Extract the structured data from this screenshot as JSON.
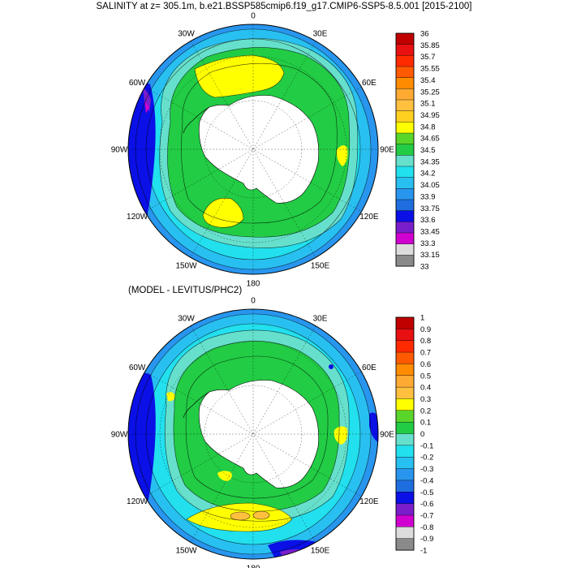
{
  "titles": {
    "top": "SALINITY at z= 305.1m, b.e21.BSSP585cmip6.f19_g17.CMIP6-SSP5-8.5.001 [2015-2100]",
    "bottom": "(MODEL - LEVITUS/PHC2)"
  },
  "longitude_labels": [
    "0",
    "30E",
    "60E",
    "90E",
    "120E",
    "150E",
    "180",
    "150W",
    "120W",
    "90W",
    "60W",
    "30W"
  ],
  "top_colorbar": {
    "labels": [
      "36",
      "35.85",
      "35.7",
      "35.55",
      "35.4",
      "35.25",
      "35.1",
      "34.95",
      "34.8",
      "34.65",
      "34.5",
      "34.35",
      "34.2",
      "34.05",
      "33.9",
      "33.75",
      "33.6",
      "33.45",
      "33.3",
      "33.15",
      "33"
    ],
    "colors": [
      "#c00000",
      "#e81010",
      "#ff2a00",
      "#ff5a00",
      "#ff8c00",
      "#ffaa33",
      "#ffc040",
      "#ffd020",
      "#ffff00",
      "#5ad52a",
      "#22cc44",
      "#66e0cc",
      "#22e0ee",
      "#28c0f0",
      "#2896ee",
      "#1e6ee0",
      "#0a10e6",
      "#7a1ecc",
      "#d000d0",
      "#dcdcdc",
      "#8a8a8a"
    ]
  },
  "bottom_colorbar": {
    "labels": [
      "1",
      "0.9",
      "0.8",
      "0.7",
      "0.6",
      "0.5",
      "0.4",
      "0.3",
      "0.2",
      "0.1",
      "0",
      "-0.1",
      "-0.2",
      "-0.3",
      "-0.4",
      "-0.5",
      "-0.6",
      "-0.7",
      "-0.8",
      "-0.9",
      "-1"
    ],
    "colors": [
      "#c00000",
      "#e81010",
      "#ff2a00",
      "#ff5a00",
      "#ff8c00",
      "#ffaa33",
      "#ffc040",
      "#ffff00",
      "#5ad52a",
      "#22cc44",
      "#66e0cc",
      "#22e0ee",
      "#28c0f0",
      "#2896ee",
      "#1e6ee0",
      "#0a10e6",
      "#7a1ecc",
      "#d000d0",
      "#dcdcdc",
      "#8a8a8a"
    ]
  },
  "colors": {
    "ocean_base": "#22cc44",
    "ocean_outer": "#28c0f0",
    "ocean_far": "#1e6ee0",
    "land": "#ffffff",
    "contour": "#000000"
  }
}
